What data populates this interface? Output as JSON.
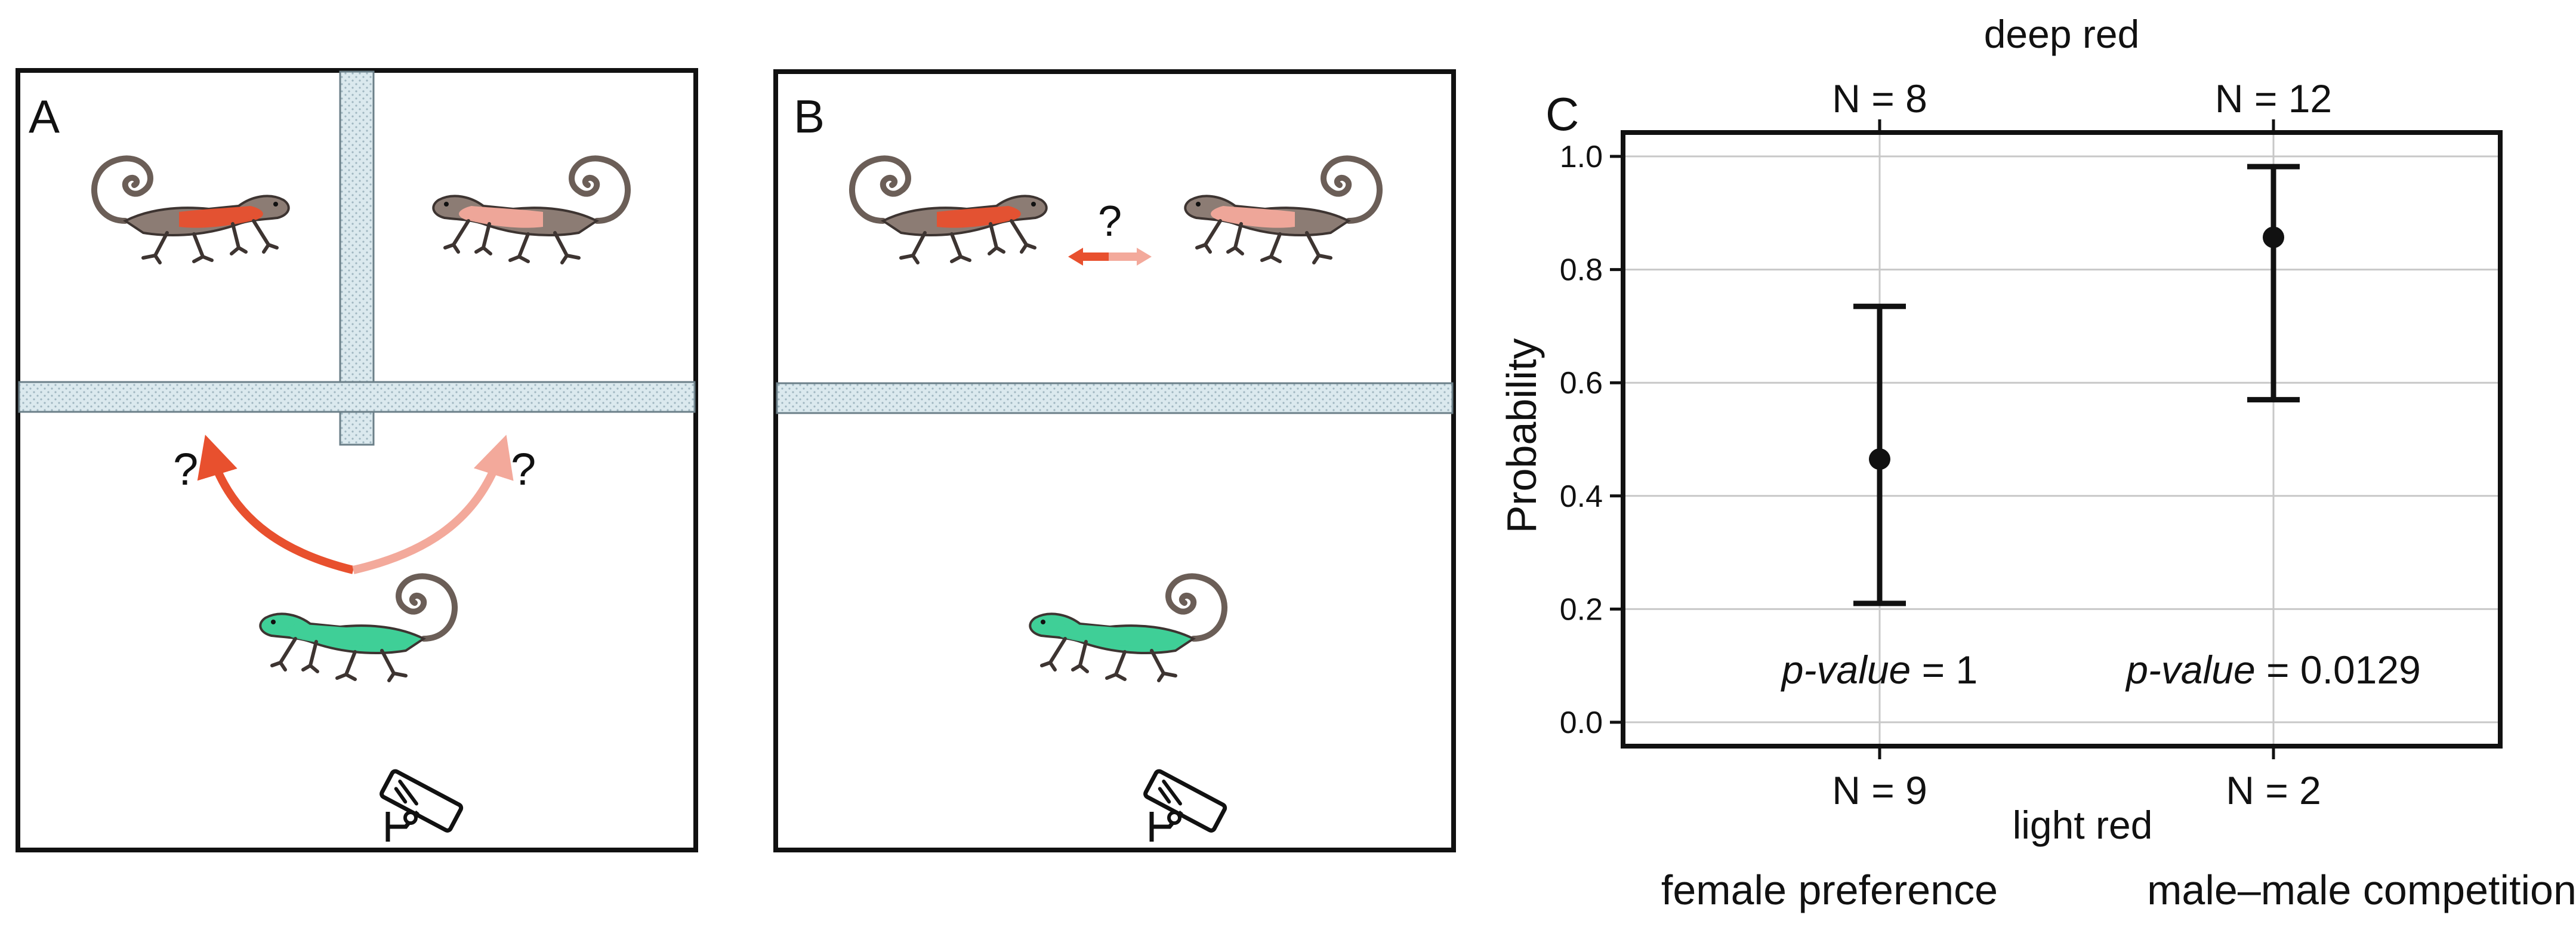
{
  "panels": {
    "a": {
      "label": "A",
      "question_marks": [
        "?",
        "?"
      ]
    },
    "b": {
      "label": "B",
      "question_mark": "?"
    },
    "c": {
      "label": "C"
    }
  },
  "colors": {
    "deep_red": "#e8502e",
    "light_red": "#f3a99b",
    "green": "#3fcf97",
    "barrier": "#dbe9ee",
    "lizard_body": "#8c7c74"
  },
  "icons": [
    "lizard-icon",
    "camera-icon",
    "double-arrow-icon"
  ],
  "chart_data": {
    "type": "scatter",
    "subtype": "errorbar",
    "categories": [
      "female preference",
      "male–male competition"
    ],
    "points": [
      {
        "category": "female preference",
        "y": 0.465,
        "ci_low": 0.21,
        "ci_high": 0.735,
        "p_value_text": "= 1"
      },
      {
        "category": "male–male competition",
        "y": 0.857,
        "ci_low": 0.57,
        "ci_high": 0.982,
        "p_value_text": "= 0.0129"
      }
    ],
    "top_axis": {
      "title": "deep red",
      "labels": [
        "N = 8",
        "N = 12"
      ]
    },
    "bottom_axis": {
      "title": "light red",
      "labels": [
        "N = 9",
        "N = 2"
      ]
    },
    "ylabel": "Probability",
    "p_value_label": "p-value",
    "ylim": [
      0,
      1
    ],
    "yticks": [
      0.0,
      0.2,
      0.4,
      0.6,
      0.8,
      1.0
    ],
    "ytick_labels": [
      "0.0",
      "0.2",
      "0.4",
      "0.6",
      "0.8",
      "1.0"
    ],
    "grid": true
  }
}
